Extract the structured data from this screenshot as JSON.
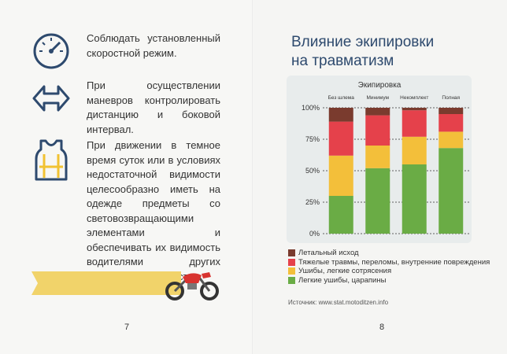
{
  "left_page": {
    "items": [
      {
        "icon": "speedometer-icon",
        "text": "Соблюдать установленный скоростной режим."
      },
      {
        "icon": "double-arrow-icon",
        "text": "При осуществлении маневров контролировать дистанцию и боковой интервал."
      },
      {
        "icon": "reflective-vest-icon",
        "text": "При движении в темное время суток или в условиях недостаточной видимости целесообразно иметь на одежде предметы со световозвращающими элементами и обеспечивать их видимость водителями других транспортных средств."
      }
    ],
    "page_number": "7"
  },
  "right_page": {
    "title": "Влияние экипировки на травматизм",
    "source": "Источник: www.stat.motoditzen.info",
    "page_number": "8"
  },
  "colors": {
    "icon_blue": "#2e4a6e",
    "fatal": "#7a3b2e",
    "severe": "#e5414b",
    "moderate": "#f3bf3a",
    "light": "#6aac45",
    "ribbon": "#f1d36a"
  },
  "chart_data": {
    "type": "bar",
    "stacked": true,
    "title": "Экипировка",
    "categories": [
      "Без шлема",
      "Минимум",
      "Некомплект",
      "Полная"
    ],
    "series": [
      {
        "name": "Легкие ушибы, царапины",
        "color": "#6aac45",
        "values": [
          30,
          52,
          55,
          68
        ]
      },
      {
        "name": "Ушибы, легкие сотрясения",
        "color": "#f3bf3a",
        "values": [
          32,
          18,
          22,
          13
        ]
      },
      {
        "name": "Тяжелые травмы, переломы, внутренние повреждения",
        "color": "#e5414b",
        "values": [
          27,
          24,
          21,
          14
        ]
      },
      {
        "name": "Летальный исход",
        "color": "#7a3b2e",
        "values": [
          11,
          6,
          2,
          5
        ]
      }
    ],
    "yticks": [
      "0%",
      "25%",
      "50%",
      "75%",
      "100%"
    ],
    "ylim": [
      0,
      100
    ],
    "grid": true,
    "legend_position": "bottom"
  }
}
